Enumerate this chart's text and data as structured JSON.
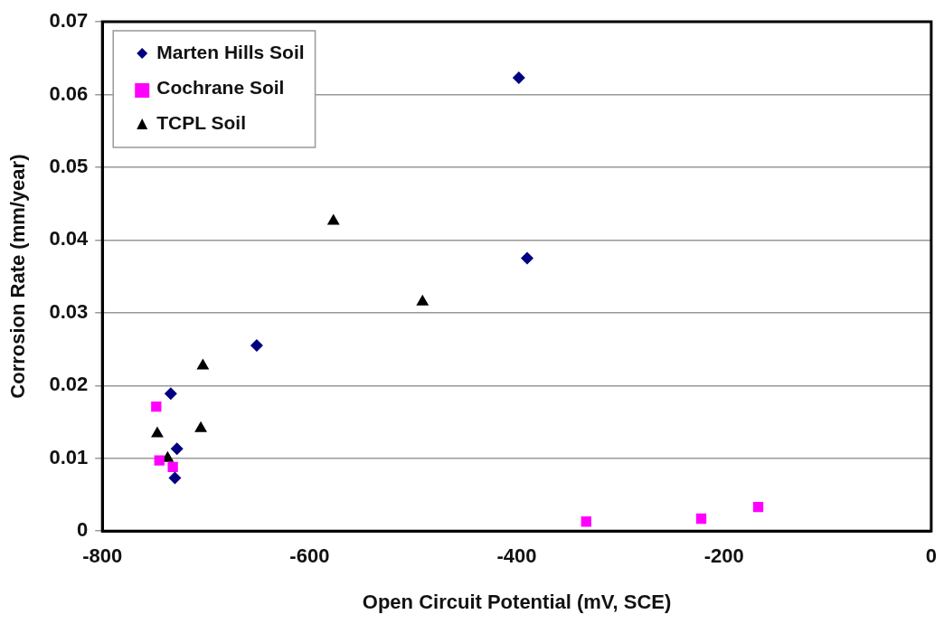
{
  "chart_data": {
    "type": "scatter",
    "xlabel": "Open Circuit Potential (mV, SCE)",
    "ylabel": "Corrosion Rate (mm/year)",
    "xlim": [
      -800,
      0
    ],
    "xticks": [
      -800,
      -600,
      -400,
      -200,
      0
    ],
    "ylim": [
      0,
      0.07
    ],
    "yticks": [
      0,
      0.01,
      0.02,
      0.03,
      0.04,
      0.05,
      0.06,
      0.07
    ],
    "grid": "y",
    "legend": "top left",
    "series": [
      {
        "name": "Marten Hills Soil",
        "color": "#000080",
        "marker": "diamond",
        "x": [
          -398,
          -390,
          -651,
          -734,
          -728,
          -730
        ],
        "values": [
          0.0623,
          0.0375,
          0.0255,
          0.0189,
          0.0113,
          0.0073
        ]
      },
      {
        "name": "Cochrane Soil",
        "color": "#ff00ff",
        "marker": "square",
        "x": [
          -748,
          -745,
          -732,
          -333,
          -222,
          -167
        ],
        "values": [
          0.0171,
          0.0097,
          0.0088,
          0.0013,
          0.0017,
          0.0033
        ]
      },
      {
        "name": "TCPL Soil",
        "color": "#000000",
        "marker": "triangle",
        "x": [
          -703,
          -747,
          -705,
          -737,
          -577,
          -491
        ],
        "values": [
          0.0227,
          0.0134,
          0.0141,
          0.01,
          0.0426,
          0.0315
        ]
      }
    ]
  }
}
